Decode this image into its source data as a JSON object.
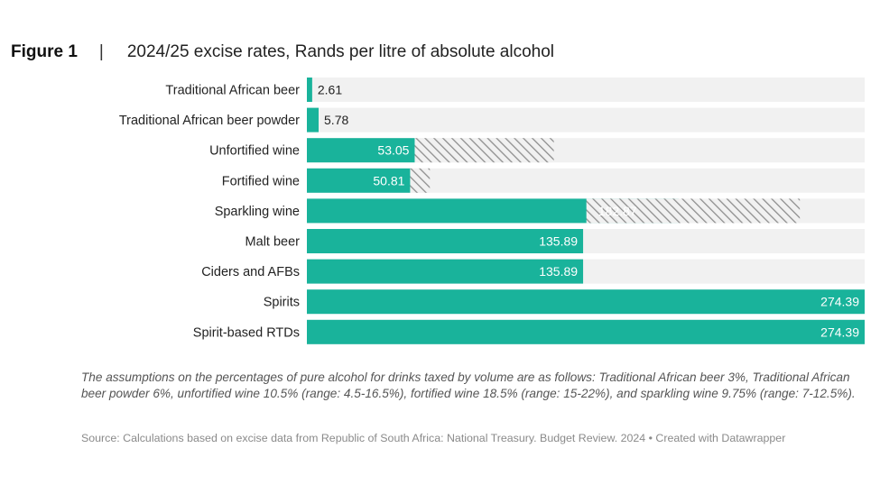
{
  "header": {
    "figure_label": "Figure 1",
    "separator": "|",
    "title": "2024/25 excise rates, Rands per litre of absolute alcohol"
  },
  "colors": {
    "bar": "#19b39b",
    "track": "#f1f1f1",
    "hatch": "#8e8e8e",
    "label_text": "#222222",
    "value_dark": "#222222",
    "value_light": "#ffffff"
  },
  "chart_data": {
    "type": "bar",
    "orientation": "horizontal",
    "title": "2024/25 excise rates, Rands per litre of absolute alcohol",
    "categories": [
      "Traditional African beer",
      "Traditional African beer powder",
      "Unfortified wine",
      "Fortified wine",
      "Sparkling wine",
      "Malt beer",
      "Ciders and AFBs",
      "Spirits",
      "Spirit-based RTDs"
    ],
    "values": [
      2.61,
      5.78,
      53.05,
      50.81,
      182.87,
      135.89,
      135.89,
      274.39,
      274.39
    ],
    "value_labels": [
      "2.61",
      "5.78",
      "53.05",
      "50.81",
      "182.87",
      "135.89",
      "135.89",
      "274.39",
      "274.39"
    ],
    "ranges": [
      null,
      null,
      {
        "low": 53.05,
        "high": 121.5
      },
      {
        "low": 50.81,
        "high": 60.5
      },
      {
        "low": 137.5,
        "high": 242.5
      },
      null,
      null,
      null,
      null
    ],
    "xlim": [
      0,
      274.39
    ],
    "legend": "none",
    "grid": false
  },
  "footer": {
    "note": "The assumptions on the percentages of pure alcohol for drinks taxed by volume are as follows: Traditional African beer 3%, Traditional African beer powder 6%, unfortified wine 10.5% (range: 4.5-16.5%), fortified wine 18.5% (range: 15-22%), and sparkling wine 9.75% (range: 7-12.5%).",
    "source": "Source: Calculations based on excise data from Republic of South Africa: National Treasury. Budget Review. 2024 • Created with Datawrapper"
  }
}
